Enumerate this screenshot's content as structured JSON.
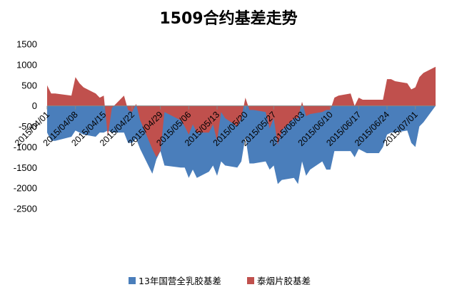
{
  "chart_data": {
    "type": "area",
    "title": "1509合约基差走势",
    "xlabel": "",
    "ylabel": "",
    "ylim": [
      -2500,
      1500
    ],
    "yticks": [
      1500,
      1000,
      500,
      0,
      -500,
      -1000,
      -1500,
      -2000,
      -2500
    ],
    "xticks": [
      "2015/04/01",
      "2015/04/08",
      "2015/04/15",
      "2015/04/22",
      "2015/04/29",
      "2015/05/06",
      "2015/05/13",
      "2015/05/20",
      "2015/05/27",
      "2015/06/03",
      "2015/06/10",
      "2015/06/17",
      "2015/06/24",
      "2015/07/01"
    ],
    "grid": false,
    "legend_position": "bottom",
    "series": [
      {
        "name": "13年国营全乳胶基差",
        "color": "#4a7ebb",
        "values": [
          [
            "2015/04/01",
            -650
          ],
          [
            "2015/04/02",
            -850
          ],
          [
            "2015/04/03",
            -850
          ],
          [
            "2015/04/07",
            -750
          ],
          [
            "2015/04/08",
            -600
          ],
          [
            "2015/04/09",
            -650
          ],
          [
            "2015/04/10",
            -700
          ],
          [
            "2015/04/13",
            -750
          ],
          [
            "2015/04/14",
            -650
          ],
          [
            "2015/04/15",
            -650
          ],
          [
            "2015/04/16",
            -600
          ],
          [
            "2015/04/17",
            -650
          ],
          [
            "2015/04/20",
            -650
          ],
          [
            "2015/04/21",
            -900
          ],
          [
            "2015/04/22",
            -900
          ],
          [
            "2015/04/23",
            -800
          ],
          [
            "2015/04/24",
            -1050
          ],
          [
            "2015/04/27",
            -1650
          ],
          [
            "2015/04/28",
            -1300
          ],
          [
            "2015/04/29",
            -1100
          ],
          [
            "2015/04/30",
            -1450
          ],
          [
            "2015/05/04",
            -1500
          ],
          [
            "2015/05/05",
            -1500
          ],
          [
            "2015/05/06",
            -1750
          ],
          [
            "2015/05/07",
            -1550
          ],
          [
            "2015/05/08",
            -1750
          ],
          [
            "2015/05/11",
            -1600
          ],
          [
            "2015/05/12",
            -1450
          ],
          [
            "2015/05/13",
            -1700
          ],
          [
            "2015/05/14",
            -1350
          ],
          [
            "2015/05/15",
            -1450
          ],
          [
            "2015/05/18",
            -1500
          ],
          [
            "2015/05/19",
            -1350
          ],
          [
            "2015/05/20",
            -750
          ],
          [
            "2015/05/21",
            -1400
          ],
          [
            "2015/05/22",
            -1400
          ],
          [
            "2015/05/25",
            -1350
          ],
          [
            "2015/05/26",
            -1550
          ],
          [
            "2015/05/27",
            -1450
          ],
          [
            "2015/05/28",
            -1900
          ],
          [
            "2015/05/29",
            -1800
          ],
          [
            "2015/06/01",
            -1750
          ],
          [
            "2015/06/02",
            -1900
          ],
          [
            "2015/06/03",
            -1350
          ],
          [
            "2015/06/04",
            -1700
          ],
          [
            "2015/06/05",
            -1550
          ],
          [
            "2015/06/08",
            -1350
          ],
          [
            "2015/06/09",
            -1550
          ],
          [
            "2015/06/10",
            -1550
          ],
          [
            "2015/06/11",
            -1100
          ],
          [
            "2015/06/12",
            -1100
          ],
          [
            "2015/06/15",
            -1100
          ],
          [
            "2015/06/16",
            -1250
          ],
          [
            "2015/06/17",
            -1050
          ],
          [
            "2015/06/18",
            -1100
          ],
          [
            "2015/06/19",
            -1150
          ],
          [
            "2015/06/22",
            -1150
          ],
          [
            "2015/06/23",
            -1000
          ],
          [
            "2015/06/24",
            -700
          ],
          [
            "2015/06/25",
            -650
          ],
          [
            "2015/06/26",
            -650
          ],
          [
            "2015/06/29",
            -600
          ],
          [
            "2015/06/30",
            -900
          ],
          [
            "2015/07/01",
            -1000
          ],
          [
            "2015/07/02",
            -500
          ],
          [
            "2015/07/03",
            -400
          ],
          [
            "2015/07/06",
            0
          ]
        ]
      },
      {
        "name": "泰烟片胶基差",
        "color": "#c0504d",
        "values": [
          [
            "2015/04/01",
            500
          ],
          [
            "2015/04/02",
            300
          ],
          [
            "2015/04/03",
            300
          ],
          [
            "2015/04/07",
            250
          ],
          [
            "2015/04/08",
            700
          ],
          [
            "2015/04/09",
            550
          ],
          [
            "2015/04/10",
            450
          ],
          [
            "2015/04/13",
            300
          ],
          [
            "2015/04/14",
            200
          ],
          [
            "2015/04/15",
            250
          ],
          [
            "2015/04/16",
            -750
          ],
          [
            "2015/04/17",
            -50
          ],
          [
            "2015/04/20",
            250
          ],
          [
            "2015/04/21",
            -100
          ],
          [
            "2015/04/22",
            -150
          ],
          [
            "2015/04/23",
            50
          ],
          [
            "2015/04/24",
            -350
          ],
          [
            "2015/04/27",
            -1050
          ],
          [
            "2015/04/28",
            -1250
          ],
          [
            "2015/04/29",
            -1100
          ],
          [
            "2015/04/30",
            -150
          ],
          [
            "2015/05/04",
            -350
          ],
          [
            "2015/05/05",
            -500
          ],
          [
            "2015/05/06",
            -700
          ],
          [
            "2015/05/07",
            -450
          ],
          [
            "2015/05/08",
            -650
          ],
          [
            "2015/05/11",
            -650
          ],
          [
            "2015/05/12",
            -450
          ],
          [
            "2015/05/13",
            -850
          ],
          [
            "2015/05/14",
            -150
          ],
          [
            "2015/05/15",
            -300
          ],
          [
            "2015/05/18",
            -500
          ],
          [
            "2015/05/19",
            -300
          ],
          [
            "2015/05/20",
            200
          ],
          [
            "2015/05/21",
            -100
          ],
          [
            "2015/05/22",
            -100
          ],
          [
            "2015/05/25",
            -150
          ],
          [
            "2015/05/26",
            -550
          ],
          [
            "2015/05/27",
            -300
          ],
          [
            "2015/05/28",
            -950
          ],
          [
            "2015/05/29",
            -600
          ],
          [
            "2015/06/01",
            -300
          ],
          [
            "2015/06/02",
            -300
          ],
          [
            "2015/06/03",
            100
          ],
          [
            "2015/06/04",
            -250
          ],
          [
            "2015/06/05",
            -200
          ],
          [
            "2015/06/08",
            -150
          ],
          [
            "2015/06/09",
            -100
          ],
          [
            "2015/06/10",
            -100
          ],
          [
            "2015/06/11",
            200
          ],
          [
            "2015/06/12",
            250
          ],
          [
            "2015/06/15",
            300
          ],
          [
            "2015/06/16",
            0
          ],
          [
            "2015/06/17",
            200
          ],
          [
            "2015/06/18",
            150
          ],
          [
            "2015/06/19",
            150
          ],
          [
            "2015/06/22",
            150
          ],
          [
            "2015/06/23",
            150
          ],
          [
            "2015/06/24",
            650
          ],
          [
            "2015/06/25",
            650
          ],
          [
            "2015/06/26",
            600
          ],
          [
            "2015/06/29",
            550
          ],
          [
            "2015/06/30",
            400
          ],
          [
            "2015/07/01",
            450
          ],
          [
            "2015/07/02",
            700
          ],
          [
            "2015/07/03",
            800
          ],
          [
            "2015/07/06",
            950
          ]
        ]
      }
    ]
  }
}
